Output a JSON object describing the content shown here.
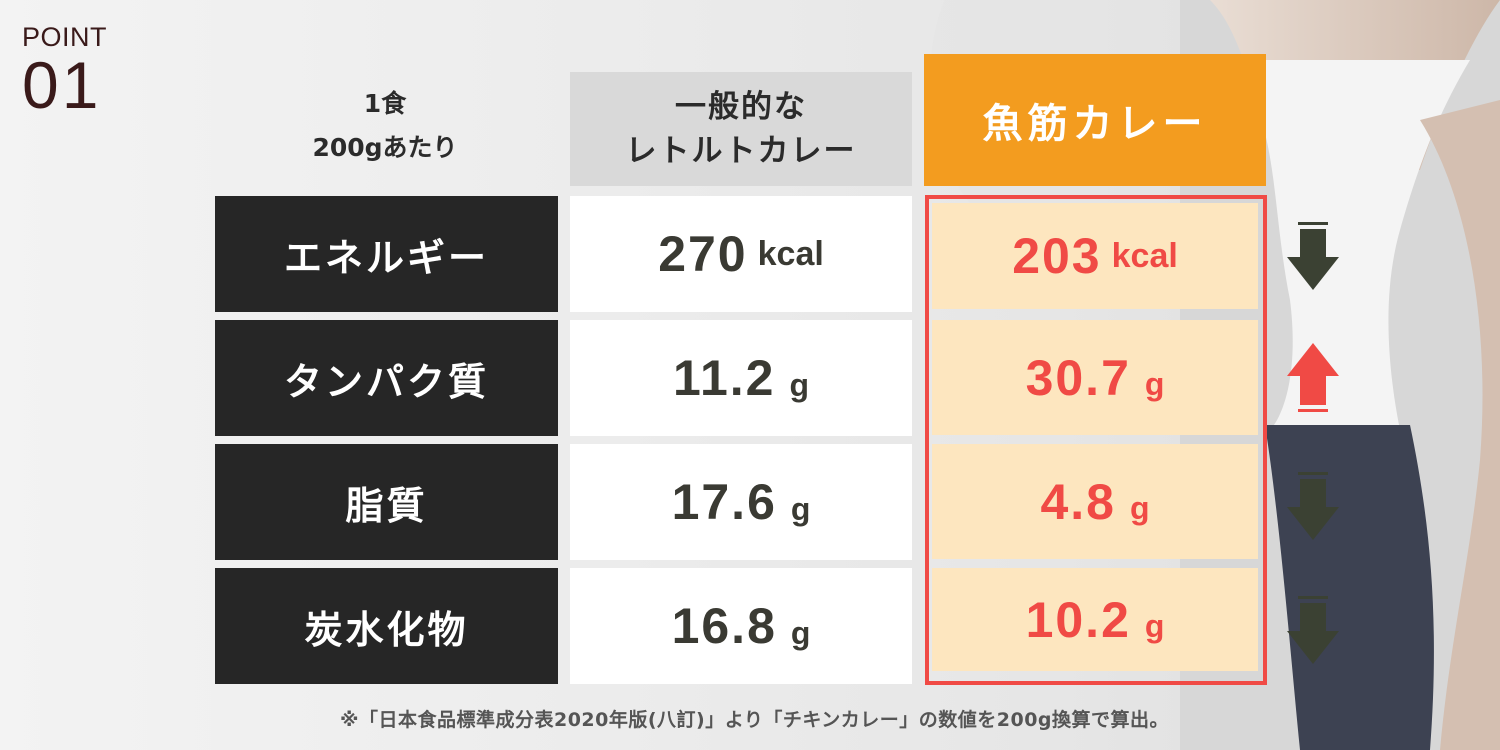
{
  "badge": {
    "label": "POINT",
    "number": "01"
  },
  "basis": {
    "line1": "1食",
    "line2": "200gあたり"
  },
  "headers": {
    "general_line1": "一般的な",
    "general_line2": "レトルトカレー",
    "fish": "魚筋カレー"
  },
  "rows": [
    {
      "label": "エネルギー",
      "general_value": "270",
      "general_unit": "kcal",
      "fish_value": "203",
      "fish_unit": "kcal",
      "trend": "down"
    },
    {
      "label": "タンパク質",
      "general_value": "11.2",
      "general_unit": "g",
      "fish_value": "30.7",
      "fish_unit": "g",
      "trend": "up"
    },
    {
      "label": "脂質",
      "general_value": "17.6",
      "general_unit": "g",
      "fish_value": "4.8",
      "fish_unit": "g",
      "trend": "down"
    },
    {
      "label": "炭水化物",
      "general_value": "16.8",
      "general_unit": "g",
      "fish_value": "10.2",
      "fish_unit": "g",
      "trend": "down"
    }
  ],
  "arrows": [
    {
      "icon": "arrow-down-icon",
      "color": "#3b4133"
    },
    {
      "icon": "arrow-up-icon",
      "color": "#f04a45"
    },
    {
      "icon": "arrow-down-icon",
      "color": "#3b4133"
    },
    {
      "icon": "arrow-down-icon",
      "color": "#3b4133"
    }
  ],
  "footnote": "※「日本食品標準成分表2020年版(八訂)」より「チキンカレー」の数値を200g換算で算出。",
  "colors": {
    "accent": "#f39c1f",
    "highlight": "#f04a45",
    "dark": "#262626",
    "fish_cell": "#fde6bf"
  }
}
